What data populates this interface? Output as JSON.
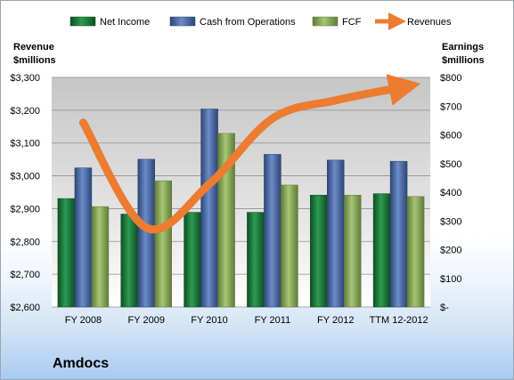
{
  "chart_data": {
    "type": "bar",
    "categories": [
      "FY 2008",
      "FY 2009",
      "FY 2010",
      "FY 2011",
      "FY 2012",
      "TTM 12-2012"
    ],
    "series": [
      {
        "name": "Net Income",
        "axis": "right",
        "values": [
          378,
          324,
          330,
          330,
          390,
          395
        ],
        "color": "#1f7a3c"
      },
      {
        "name": "Cash from Operations",
        "axis": "right",
        "values": [
          485,
          515,
          690,
          532,
          512,
          508
        ],
        "color": "#4a6aa5"
      },
      {
        "name": "FCF",
        "axis": "right",
        "values": [
          350,
          440,
          605,
          425,
          390,
          385
        ],
        "color": "#86a756"
      }
    ],
    "line_series": {
      "name": "Revenues",
      "axis": "left",
      "values": [
        3162,
        2842,
        2975,
        3175,
        3230,
        3268
      ],
      "color": "#ec7c30"
    },
    "left_axis": {
      "label_line1": "Revenue",
      "label_line2": "$millions",
      "ylim": [
        2600,
        3300
      ],
      "ticks": [
        "$3,300",
        "$3,200",
        "$3,100",
        "$3,000",
        "$2,900",
        "$2,800",
        "$2,700",
        "$2,600"
      ]
    },
    "right_axis": {
      "label_line1": "Earnings",
      "label_line2": "$millions",
      "ylim": [
        0,
        800
      ],
      "ticks": [
        "$800",
        "$700",
        "$600",
        "$500",
        "$400",
        "$300",
        "$200",
        "$100",
        "$-"
      ]
    },
    "legend": {
      "position": "top"
    },
    "grid": true
  },
  "company_name": "Amdocs"
}
